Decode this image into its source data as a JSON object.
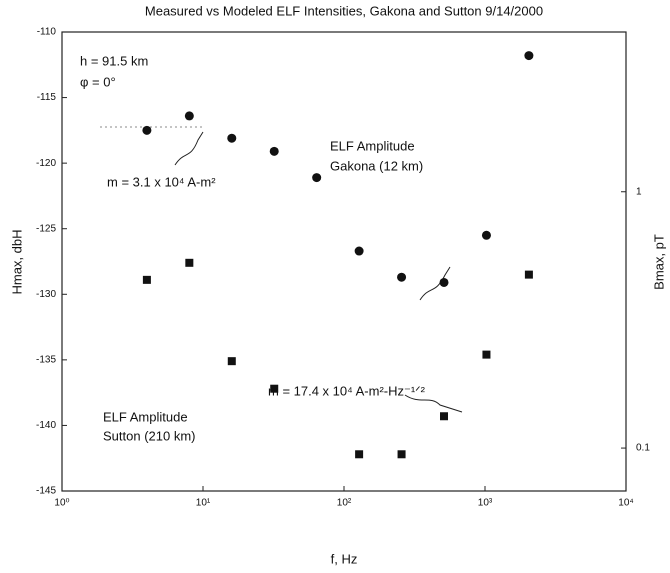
{
  "chart_data": {
    "type": "scatter",
    "title": "Measured vs Modeled ELF Intensities, Gakona and Sutton 9/14/2000",
    "x_label": "f, Hz",
    "y_label": "Hmax, dbH",
    "y2_label": "Bmax, pT",
    "log_x": true,
    "log_y2": true,
    "xlim": [
      1,
      10000
    ],
    "xticks": [
      {
        "value": 1,
        "label": "10⁰"
      },
      {
        "value": 10,
        "label": "10¹"
      },
      {
        "value": 100,
        "label": "10²"
      },
      {
        "value": 1000,
        "label": "10³"
      },
      {
        "value": 10000,
        "label": "10⁴"
      }
    ],
    "ylim": [
      -145,
      -110
    ],
    "yticks": [
      -145,
      -140,
      -135,
      -130,
      -125,
      -120,
      -115,
      -110
    ],
    "y2lim": [
      0.068,
      4.2
    ],
    "y2ticks": [
      0.1,
      1
    ],
    "series": [
      {
        "name": "Gakona (12 km)",
        "marker": "circle",
        "color": "#111111",
        "x": [
          4,
          8,
          16,
          32,
          64,
          128,
          256,
          512,
          1024,
          2048
        ],
        "values": [
          -117.5,
          -116.4,
          -118.1,
          -119.1,
          -121.1,
          -126.7,
          -128.7,
          -129.1,
          -125.5,
          -111.8
        ]
      },
      {
        "name": "Sutton (210 km)",
        "marker": "square",
        "color": "#111111",
        "x": [
          4,
          8,
          16,
          32,
          128,
          256,
          512,
          1024,
          2048
        ],
        "values": [
          -128.9,
          -127.6,
          -135.1,
          -137.2,
          -142.2,
          -142.2,
          -139.3,
          -134.6,
          -128.5
        ]
      }
    ],
    "annotations": [
      "h = 91.5 km",
      "φ = 0°",
      "m = 3.1 x 10⁴ A-m²",
      "ELF Amplitude",
      "Gakona (12 km)",
      "m = 17.4 x 10⁴ A-m²-Hz⁻¹ᐟ²",
      "ELF Amplitude",
      "Sutton (210 km)"
    ]
  }
}
